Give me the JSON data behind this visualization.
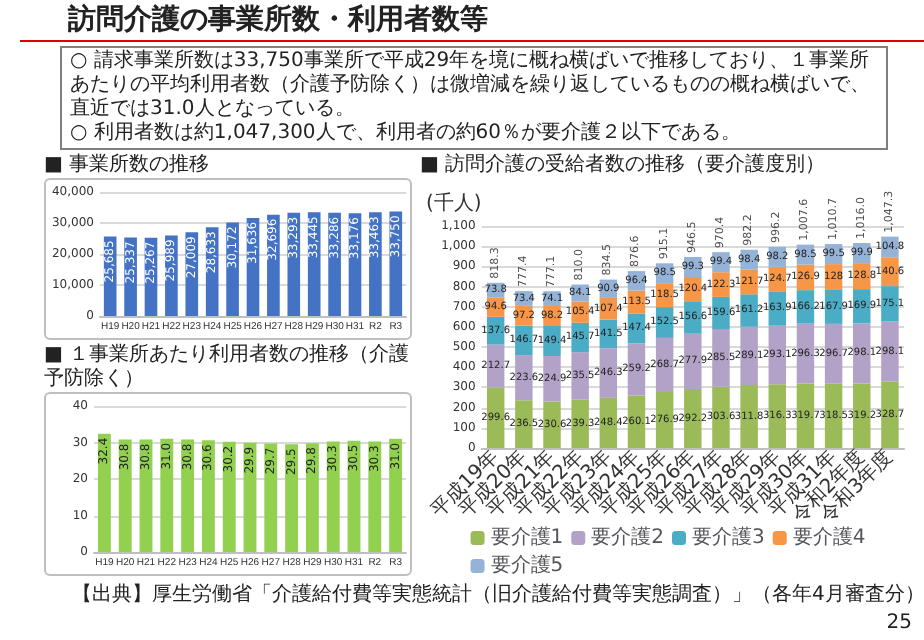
{
  "chart_data": [
    {
      "type": "other",
      "title": "訪問介護の事業所数・利用者数等",
      "annotations": [
        "○ 請求事業所数は33,750事業所で平成29年を境に概ね横ばいで推移しており、１事業所あたりの平均利用者数（介護予防除く）は微増減を繰り返しているものの概ね横ばいで、直近では31.0人となっている。",
        "○ 利用者数は約1,047,300人で、利用者の約60％が要介護２以下である。",
        "【出典】厚生労働省「介護給付費等実態統計（旧介護給付費等実態調査）」（各年4月審査分）",
        "25"
      ]
    },
    {
      "type": "bar",
      "title": "■ 事業所数の推移",
      "categories": [
        "H19",
        "H20",
        "H21",
        "H22",
        "H23",
        "H24",
        "H25",
        "H26",
        "H27",
        "H28",
        "H29",
        "H30",
        "H31",
        "R2",
        "R3"
      ],
      "values": [
        25685,
        25337,
        25267,
        25989,
        27009,
        28633,
        30172,
        31636,
        32696,
        33293,
        33445,
        33286,
        33176,
        33463,
        33750
      ],
      "color": "#4472c4",
      "value_labels": [
        "25,685",
        "25,337",
        "25,267",
        "25,989",
        "27,009",
        "28,633",
        "30,172",
        "31,636",
        "32,696",
        "33,293",
        "33,445",
        "33,286",
        "33,176",
        "33,463",
        "33,750"
      ],
      "ylim": [
        0,
        40000
      ],
      "yticks": [
        0,
        {
          "value": 10000,
          "label": "10,000"
        },
        {
          "value": 20000,
          "label": "20,000"
        },
        {
          "value": 30000,
          "label": "30,000"
        },
        {
          "value": 40000,
          "label": "40,000"
        }
      ],
      "grid": "y"
    },
    {
      "type": "bar",
      "title": "■ １事業所あたり利用者数の推移（介護予防除く）",
      "categories": [
        "H19",
        "H20",
        "H21",
        "H22",
        "H23",
        "H24",
        "H25",
        "H26",
        "H27",
        "H28",
        "H29",
        "H30",
        "H31",
        "R2",
        "R3"
      ],
      "values": [
        32.4,
        30.8,
        30.8,
        31.0,
        30.8,
        30.6,
        30.2,
        29.9,
        29.7,
        29.5,
        29.8,
        30.3,
        30.5,
        30.3,
        31.0
      ],
      "color": "#92d050",
      "value_labels": [
        "32.4",
        "30.8",
        "30.8",
        "31.0",
        "30.8",
        "30.6",
        "30.2",
        "29.9",
        "29.7",
        "29.5",
        "29.8",
        "30.3",
        "30.5",
        "30.3",
        "31.0"
      ],
      "ylim": [
        0,
        40
      ],
      "yticks": [
        0,
        10,
        20,
        30,
        40
      ],
      "grid": "y"
    },
    {
      "type": "bar",
      "title": "■ 訪問介護の受給者数の推移（要介護度別）",
      "ylabel": "(千人)",
      "categories": [
        "平成19年",
        "平成20年",
        "平成21年",
        "平成22年",
        "平成23年",
        "平成24年",
        "平成25年",
        "平成26年",
        "平成27年",
        "平成28年",
        "平成29年",
        "平成30年",
        "平成31年",
        "令和2年度",
        "令和3年度"
      ],
      "stacked": true,
      "data_labels": true,
      "legend": "bottom",
      "grid": "y",
      "ylim": [
        0,
        1100
      ],
      "yticks": [
        0,
        100,
        200,
        300,
        400,
        500,
        600,
        700,
        800,
        900,
        {
          "value": 1000,
          "label": "1,000"
        },
        {
          "value": 1100,
          "label": "1,100"
        }
      ],
      "series": [
        {
          "name": "要介護1",
          "color": "#9bbb59",
          "values": [
            299.6,
            236.5,
            230.6,
            239.3,
            248.4,
            260.1,
            276.9,
            292.2,
            303.6,
            311.8,
            316.3,
            319.7,
            318.5,
            319.2,
            328.7
          ]
        },
        {
          "name": "要介護2",
          "color": "#b3a2c7",
          "values": [
            212.7,
            223.6,
            224.9,
            235.5,
            246.3,
            259.2,
            268.7,
            277.9,
            285.5,
            289.1,
            293.1,
            296.3,
            296.7,
            298.1,
            298.1
          ]
        },
        {
          "name": "要介護3",
          "color": "#4bacc6",
          "values": [
            137.6,
            146.7,
            149.4,
            145.7,
            141.5,
            147.4,
            152.5,
            156.6,
            159.6,
            161.2,
            163.9,
            166.2,
            167.9,
            169.9,
            175.1
          ]
        },
        {
          "name": "要介護4",
          "color": "#f79646",
          "values": [
            94.6,
            97.2,
            98.2,
            105.4,
            107.4,
            113.5,
            118.5,
            120.4,
            122.3,
            121.7,
            124.7,
            126.9,
            128,
            128.8,
            140.6
          ]
        },
        {
          "name": "要介護5",
          "color": "#95b3d7",
          "values": [
            73.8,
            73.4,
            74.1,
            84.1,
            90.9,
            96.4,
            98.5,
            99.3,
            99.4,
            98.4,
            98.2,
            98.5,
            99.5,
            99.9,
            104.8
          ]
        }
      ],
      "totals": [
        "818.3",
        "777.4",
        "777.1",
        "810.0",
        "834.5",
        "876.6",
        "915.1",
        "946.5",
        "970.4",
        "982.2",
        "996.2",
        "1,007.6",
        "1,010.7",
        "1,016.0",
        "1,047.3"
      ]
    }
  ]
}
